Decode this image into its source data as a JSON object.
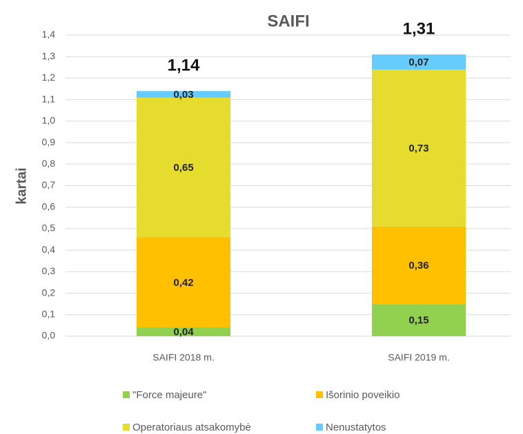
{
  "chart_data": {
    "type": "stacked_bar",
    "title": "SAIFI",
    "y_label": "kartai",
    "categories": [
      "SAIFI 2018 m.",
      "SAIFI 2019 m."
    ],
    "series": [
      {
        "name": "\"Force majeure\"",
        "color": "#92d050",
        "values": [
          0.04,
          0.15
        ],
        "value_labels": [
          "0,04",
          "0,15"
        ]
      },
      {
        "name": "Išorinio poveikio",
        "color": "#ffc000",
        "values": [
          0.42,
          0.36
        ],
        "value_labels": [
          "0,42",
          "0,36"
        ]
      },
      {
        "name": "Operatoriaus atsakomybė",
        "color": "#e5dc2d",
        "values": [
          0.65,
          0.73
        ],
        "value_labels": [
          "0,65",
          "0,73"
        ]
      },
      {
        "name": "Nenustatytos",
        "color": "#66ccff",
        "values": [
          0.03,
          0.07
        ],
        "value_labels": [
          "0,03",
          "0,07"
        ]
      }
    ],
    "totals": [
      1.14,
      1.31
    ],
    "total_labels": [
      "1,14",
      "1,31"
    ],
    "ylim": [
      0,
      1.4
    ],
    "yticks": [
      {
        "value": 0,
        "label": "0,0"
      },
      {
        "value": 0.1,
        "label": "0,1"
      },
      {
        "value": 0.2,
        "label": "0,2"
      },
      {
        "value": 0.3,
        "label": "0,3"
      },
      {
        "value": 0.4,
        "label": "0,4"
      },
      {
        "value": 0.5,
        "label": "0,5"
      },
      {
        "value": 0.6,
        "label": "0,6"
      },
      {
        "value": 0.7,
        "label": "0,7"
      },
      {
        "value": 0.8,
        "label": "0,8"
      },
      {
        "value": 0.9,
        "label": "0,9"
      },
      {
        "value": 1.0,
        "label": "1,0"
      },
      {
        "value": 1.1,
        "label": "1,1"
      },
      {
        "value": 1.2,
        "label": "1,2"
      },
      {
        "value": 1.3,
        "label": "1,3"
      },
      {
        "value": 1.4,
        "label": "1,4"
      }
    ],
    "grid": true
  }
}
